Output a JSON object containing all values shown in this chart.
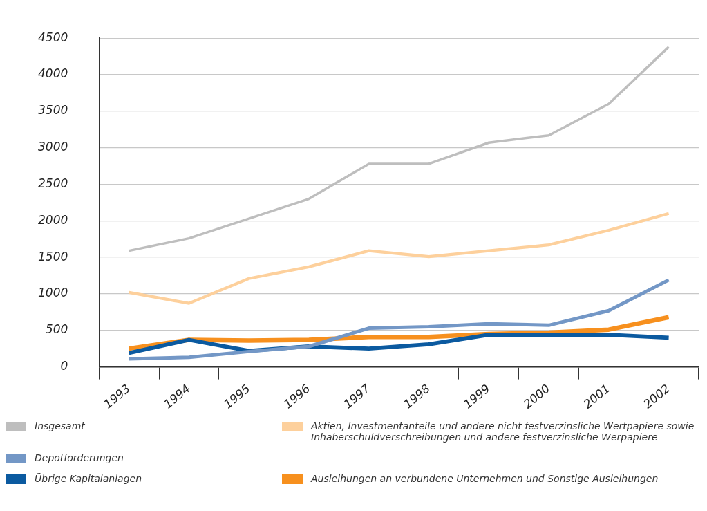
{
  "chart_data": {
    "type": "line",
    "categories": [
      "1993",
      "1994",
      "1995",
      "1996",
      "1997",
      "1998",
      "1999",
      "2000",
      "2001",
      "2002"
    ],
    "series": [
      {
        "name": "Insgesamt",
        "color": "#bebebe",
        "values": [
          1590,
          1760,
          2030,
          2300,
          2780,
          2780,
          3070,
          3170,
          3600,
          4380
        ]
      },
      {
        "name": "Aktien, Investmentanteile und andere nicht festverzinsliche Wertpapiere sowie Inhaberschuldverschreibungen und andere festverzinsliche Werpapiere",
        "color": "#fdd09c",
        "values": [
          1020,
          870,
          1210,
          1370,
          1590,
          1510,
          1590,
          1670,
          1870,
          2100
        ]
      },
      {
        "name": "Depotforderungen",
        "color": "#7397c6",
        "values": [
          110,
          130,
          210,
          280,
          530,
          550,
          590,
          570,
          770,
          1190
        ]
      },
      {
        "name": "Übrige Kapitalanlagen",
        "color": "#0b5aa0",
        "values": [
          190,
          370,
          220,
          280,
          250,
          310,
          440,
          440,
          440,
          400
        ]
      },
      {
        "name": "Ausleihungen an verbundene Unternehmen und Sonstige Ausleihungen",
        "color": "#f7901e",
        "values": [
          250,
          370,
          360,
          370,
          410,
          410,
          450,
          470,
          510,
          680
        ]
      }
    ],
    "ylim": [
      0,
      4500
    ],
    "yticks": [
      0,
      500,
      1000,
      1500,
      2000,
      2500,
      3000,
      3500,
      4000,
      4500
    ],
    "grid": "y",
    "legend": "bottom",
    "marker": "none",
    "line_style": "solid"
  }
}
